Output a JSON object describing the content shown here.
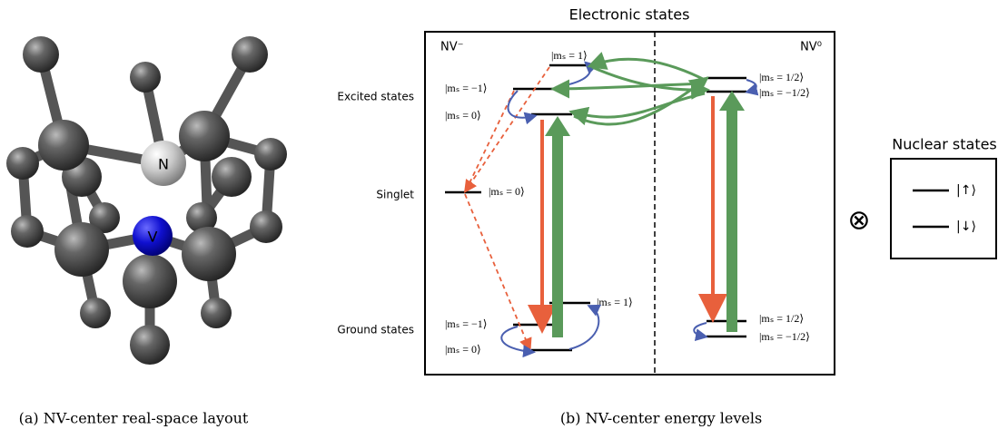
{
  "panel_a": {
    "caption": "(a) NV-center real-space layout",
    "atoms": {
      "nitrogen": "N",
      "vacancy": "V"
    }
  },
  "panel_b": {
    "caption": "(b) NV-center energy levels",
    "title": "Electronic states",
    "charge_states": [
      "NV⁻",
      "NV⁰"
    ],
    "level_groups": [
      "Excited states",
      "Singlet",
      "Ground states"
    ],
    "nv_minus_levels": {
      "excited": [
        "|mₛ = 1⟩",
        "|mₛ = −1⟩",
        "|mₛ = 0⟩"
      ],
      "singlet": "|mₛ = 0⟩",
      "ground": [
        "|mₛ = 1⟩",
        "|mₛ = −1⟩",
        "|mₛ = 0⟩"
      ]
    },
    "nv_zero_levels": {
      "excited": [
        "|mₛ = 1/2⟩",
        "|mₛ = −1/2⟩"
      ],
      "ground": [
        "|mₛ = 1/2⟩",
        "|mₛ = −1/2⟩"
      ]
    }
  },
  "nuclear": {
    "title": "Nuclear states",
    "operator": "⊗",
    "levels": [
      "|↑⟩",
      "|↓⟩"
    ]
  }
}
